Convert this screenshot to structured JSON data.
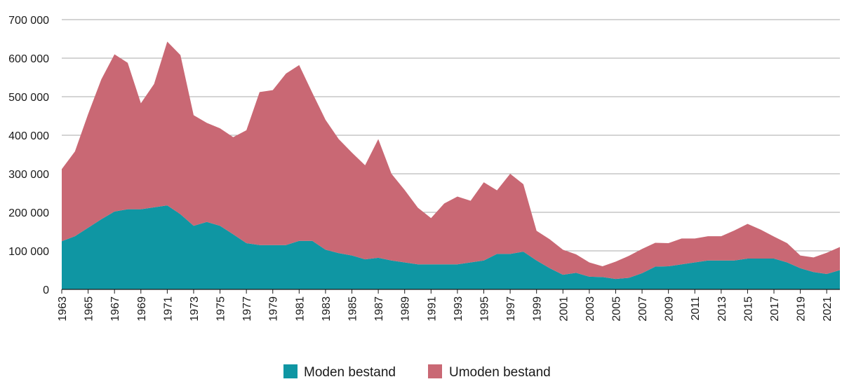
{
  "chart_data": {
    "type": "area",
    "stacked": true,
    "title": "",
    "xlabel": "",
    "ylabel": "",
    "ylim": [
      0,
      700000
    ],
    "yticks": [
      0,
      100000,
      200000,
      300000,
      400000,
      500000,
      600000,
      700000
    ],
    "ytick_labels": [
      "0",
      "100 000",
      "200 000",
      "300 000",
      "400 000",
      "500 000",
      "600 000",
      "700 000"
    ],
    "xlim": [
      1963,
      2022
    ],
    "xticks": [
      1963,
      1965,
      1967,
      1969,
      1971,
      1973,
      1975,
      1977,
      1979,
      1981,
      1983,
      1985,
      1987,
      1989,
      1991,
      1993,
      1995,
      1997,
      1999,
      2001,
      2003,
      2005,
      2007,
      2009,
      2011,
      2013,
      2015,
      2017,
      2019,
      2021
    ],
    "xtick_labels": [
      "1963",
      "1965",
      "1967",
      "1969",
      "1971",
      "1973",
      "1975",
      "1977",
      "1979",
      "1981",
      "1983",
      "1985",
      "1987",
      "1989",
      "1991",
      "1993",
      "1995",
      "1997",
      "1999",
      "2001",
      "2003",
      "2005",
      "2007",
      "2009",
      "2011",
      "2013",
      "2015",
      "2017",
      "2019",
      "2021"
    ],
    "grid": "horizontal",
    "legend_position": "bottom-center",
    "x": [
      1963,
      1964,
      1965,
      1966,
      1967,
      1968,
      1969,
      1970,
      1971,
      1972,
      1973,
      1974,
      1975,
      1976,
      1977,
      1978,
      1979,
      1980,
      1981,
      1982,
      1983,
      1984,
      1985,
      1986,
      1987,
      1988,
      1989,
      1990,
      1991,
      1992,
      1993,
      1994,
      1995,
      1996,
      1997,
      1998,
      1999,
      2000,
      2001,
      2002,
      2003,
      2004,
      2005,
      2006,
      2007,
      2008,
      2009,
      2010,
      2011,
      2012,
      2013,
      2014,
      2015,
      2016,
      2017,
      2018,
      2019,
      2020,
      2021,
      2022
    ],
    "series": [
      {
        "name": "Moden bestand",
        "color": "#0f96a3",
        "values": [
          125000,
          138000,
          160000,
          182000,
          202000,
          208000,
          208000,
          213000,
          218000,
          195000,
          165000,
          175000,
          165000,
          143000,
          120000,
          115000,
          115000,
          115000,
          126000,
          126000,
          103000,
          94000,
          88000,
          78000,
          82000,
          75000,
          70000,
          65000,
          65000,
          65000,
          65000,
          70000,
          75000,
          92000,
          92000,
          98000,
          75000,
          55000,
          38000,
          43000,
          33000,
          32000,
          27000,
          30000,
          42000,
          59000,
          60000,
          65000,
          70000,
          75000,
          75000,
          75000,
          80000,
          80000,
          80000,
          70000,
          55000,
          45000,
          40000,
          50000
        ]
      },
      {
        "name": "Umoden bestand",
        "color": "#c96874",
        "values": [
          187000,
          220000,
          295000,
          363000,
          408000,
          380000,
          275000,
          320000,
          425000,
          413000,
          287000,
          257000,
          253000,
          252000,
          293000,
          397000,
          402000,
          445000,
          456000,
          384000,
          337000,
          296000,
          267000,
          244000,
          308000,
          225000,
          188000,
          147000,
          120000,
          158000,
          176000,
          160000,
          203000,
          165000,
          208000,
          175000,
          77000,
          75000,
          65000,
          48000,
          37000,
          28000,
          45000,
          57000,
          63000,
          62000,
          60000,
          67000,
          62000,
          63000,
          63000,
          78000,
          90000,
          75000,
          57000,
          50000,
          33000,
          38000,
          55000,
          60000
        ]
      }
    ]
  }
}
